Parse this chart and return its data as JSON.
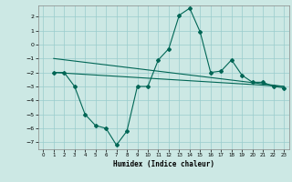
{
  "xlabel": "Humidex (Indice chaleur)",
  "ylabel": "",
  "background_color": "#cce8e4",
  "grid_color": "#99cccc",
  "line_color": "#006655",
  "xlim": [
    -0.5,
    23.5
  ],
  "ylim": [
    -7.5,
    2.8
  ],
  "yticks": [
    2,
    1,
    0,
    -1,
    -2,
    -3,
    -4,
    -5,
    -6,
    -7
  ],
  "xticks": [
    0,
    1,
    2,
    3,
    4,
    5,
    6,
    7,
    8,
    9,
    10,
    11,
    12,
    13,
    14,
    15,
    16,
    17,
    18,
    19,
    20,
    21,
    22,
    23
  ],
  "series1_x": [
    1,
    2,
    3,
    4,
    5,
    6,
    7,
    8,
    9,
    10,
    11,
    12,
    13,
    14,
    15,
    16,
    17,
    18,
    19,
    20,
    21,
    22,
    23
  ],
  "series1_y": [
    -2.0,
    -2.0,
    -3.0,
    -5.0,
    -5.8,
    -6.0,
    -7.2,
    -6.2,
    -3.0,
    -3.0,
    -1.1,
    -0.3,
    2.1,
    2.6,
    0.9,
    -2.0,
    -1.9,
    -1.1,
    -2.2,
    -2.7,
    -2.7,
    -3.0,
    -3.1
  ],
  "series2_x": [
    1,
    23
  ],
  "series2_y": [
    -1.0,
    -3.0
  ],
  "series3_x": [
    1,
    23
  ],
  "series3_y": [
    -2.0,
    -3.0
  ]
}
